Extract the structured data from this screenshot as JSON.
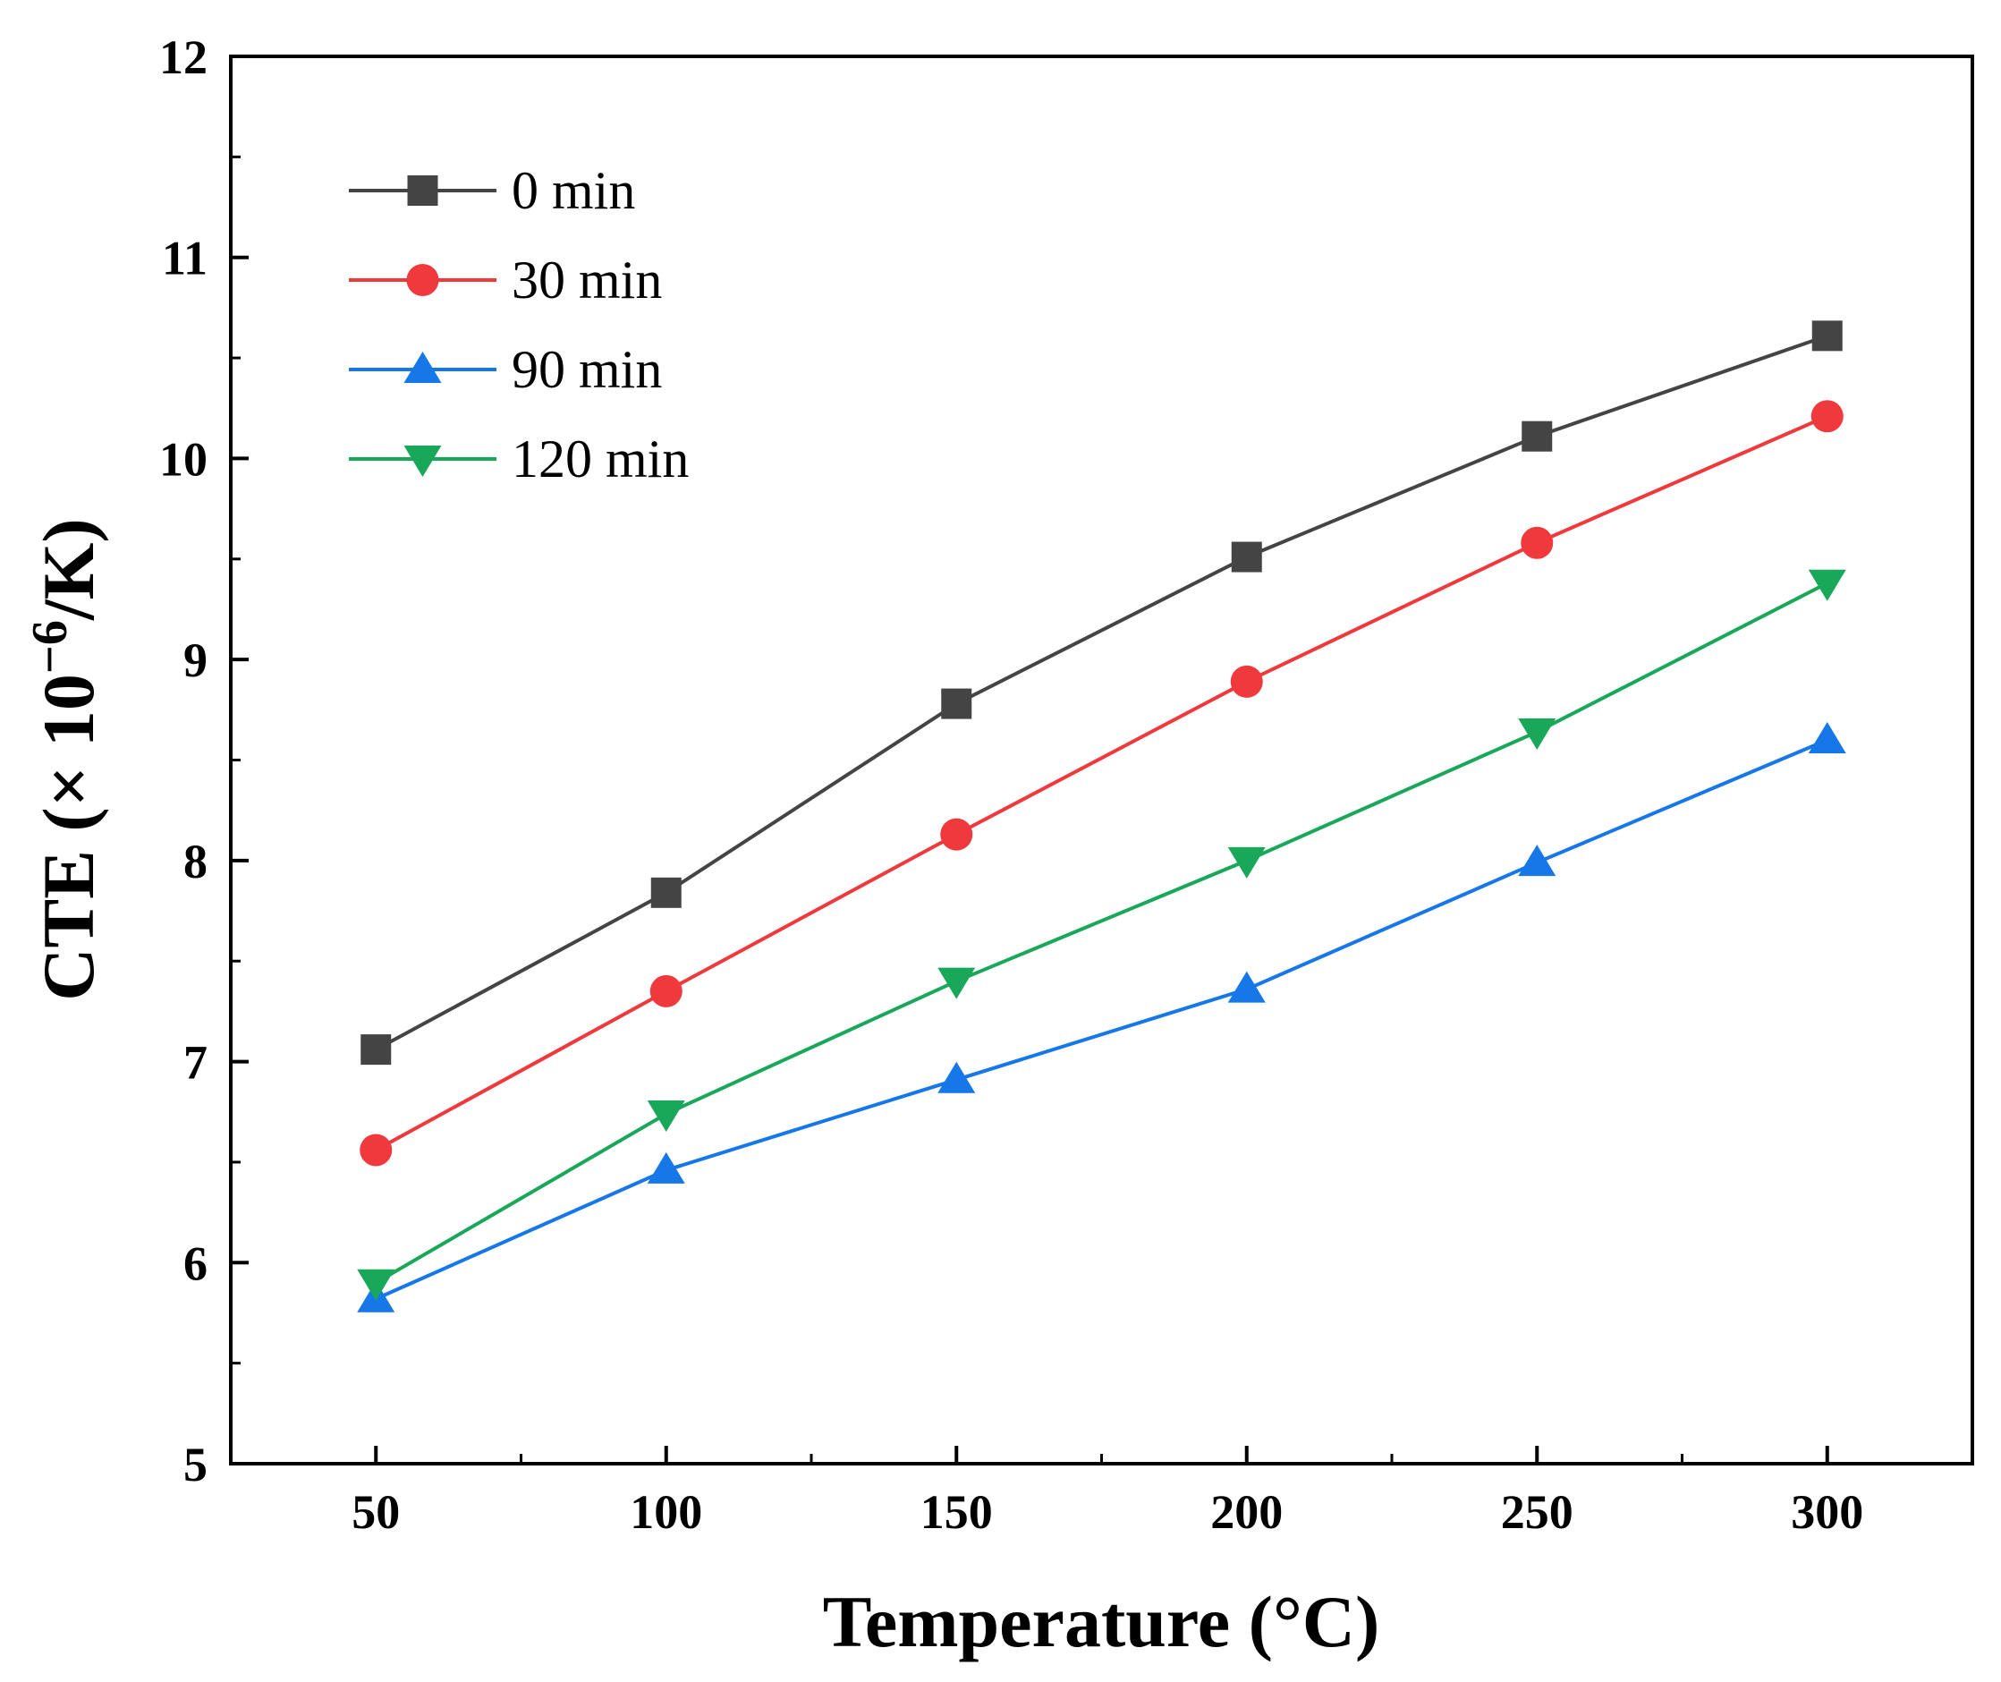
{
  "chart_data": {
    "type": "line",
    "title": "",
    "xlabel": "Temperature (°C)",
    "ylabel": {
      "prefix": "CTE (× 10",
      "superscript": "−6",
      "suffix": "/K)"
    },
    "xlim": [
      25,
      325
    ],
    "ylim": [
      5,
      12
    ],
    "x_ticks": [
      50,
      100,
      150,
      200,
      250,
      300
    ],
    "x_minor_ticks": [
      75,
      125,
      175,
      225,
      275
    ],
    "y_ticks": [
      5,
      6,
      7,
      8,
      9,
      10,
      11,
      12
    ],
    "y_minor_ticks": [
      5.5,
      6.5,
      7.5,
      8.5,
      9.5,
      10.5,
      11.5
    ],
    "grid": false,
    "legend_position": "top-left",
    "x": [
      50,
      100,
      150,
      200,
      250,
      300
    ],
    "series": [
      {
        "name": "0 min",
        "color": "#444444",
        "marker": "square",
        "values": [
          7.06,
          7.84,
          8.78,
          9.51,
          10.11,
          10.61
        ]
      },
      {
        "name": "30 min",
        "color": "#f0393c",
        "marker": "circle",
        "values": [
          6.56,
          7.35,
          8.13,
          8.89,
          9.58,
          10.21
        ]
      },
      {
        "name": "90 min",
        "color": "#1677e8",
        "marker": "triangle-up",
        "values": [
          5.82,
          6.46,
          6.91,
          7.36,
          7.99,
          8.6
        ]
      },
      {
        "name": "120 min",
        "color": "#19a85a",
        "marker": "triangle-down",
        "values": [
          5.9,
          6.74,
          7.4,
          8.0,
          8.64,
          9.38
        ]
      }
    ]
  }
}
